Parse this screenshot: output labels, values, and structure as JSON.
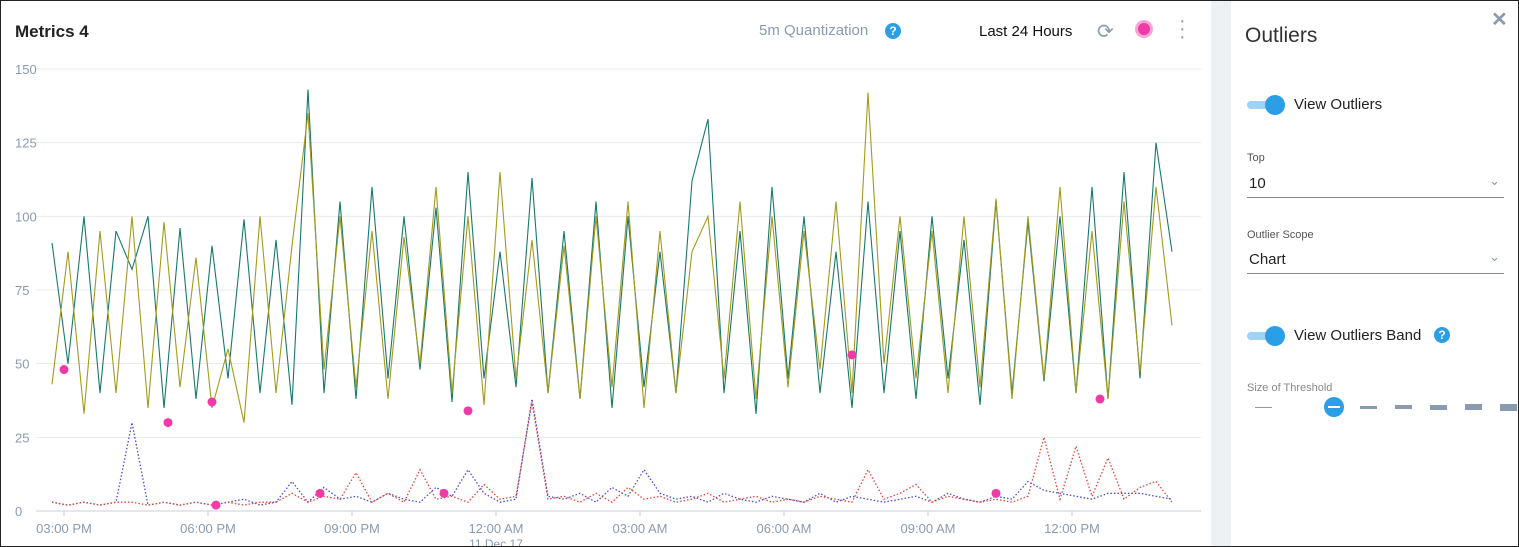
{
  "header": {
    "title": "Metrics 4",
    "quantization": "5m Quantization",
    "help_glyph": "?",
    "time_range": "Last 24 Hours",
    "icons": [
      "refresh-icon",
      "outlier-indicator-icon",
      "more-vertical-icon"
    ]
  },
  "panel": {
    "title": "Outliers",
    "close_glyph": "✕",
    "view_outliers": "View Outliers",
    "view_outliers_on": true,
    "top_label": "Top",
    "top_value": "10",
    "scope_label": "Outlier Scope",
    "scope_value": "Chart",
    "view_band": "View Outliers Band",
    "view_band_on": true,
    "threshold_label": "Size of Threshold",
    "threshold_selected": 2,
    "threshold_sizes": 7
  },
  "chart_data": {
    "type": "line",
    "ylim": [
      0,
      150
    ],
    "yticks": [
      "0",
      "25",
      "50",
      "75",
      "100",
      "125",
      "150"
    ],
    "xticks": [
      "03:00 PM",
      "06:00 PM",
      "09:00 PM",
      "12:00 AM",
      "03:00 AM",
      "06:00 AM",
      "09:00 AM",
      "12:00 PM"
    ],
    "xtick_sublabel": "11 Dec 17",
    "x_start": "02:45 PM",
    "interval_minutes": 20,
    "grid": true,
    "series": [
      {
        "color": "#167a6a",
        "style": "solid",
        "values": [
          91,
          50,
          100,
          40,
          95,
          82,
          100,
          35,
          96,
          38,
          90,
          45,
          99,
          40,
          92,
          36,
          143,
          40,
          105,
          38,
          110,
          45,
          100,
          48,
          103,
          37,
          115,
          45,
          88,
          42,
          113,
          40,
          95,
          38,
          105,
          35,
          100,
          42,
          88,
          40,
          112,
          133,
          40,
          95,
          33,
          110,
          45,
          100,
          40,
          88,
          35,
          105,
          40,
          95,
          38,
          100,
          45,
          92,
          36,
          105,
          40,
          98,
          44,
          100,
          40,
          110,
          38,
          115,
          45,
          125,
          88
        ]
      },
      {
        "color": "#a49a1c",
        "style": "solid",
        "values": [
          43,
          88,
          33,
          95,
          40,
          100,
          35,
          98,
          42,
          86,
          35,
          55,
          30,
          100,
          40,
          90,
          135,
          48,
          100,
          42,
          95,
          38,
          93,
          50,
          110,
          40,
          100,
          36,
          115,
          45,
          92,
          40,
          90,
          38,
          100,
          42,
          105,
          35,
          95,
          40,
          88,
          100,
          45,
          105,
          38,
          100,
          42,
          95,
          48,
          105,
          40,
          142,
          50,
          100,
          45,
          95,
          40,
          100,
          42,
          106,
          38,
          100,
          45,
          110,
          40,
          95,
          38,
          105,
          47,
          110,
          63
        ]
      },
      {
        "color": "#4a4ad6",
        "style": "dotted",
        "values": [
          3,
          2,
          3,
          2,
          3,
          30,
          2,
          3,
          2,
          3,
          2,
          3,
          4,
          2,
          3,
          10,
          3,
          8,
          4,
          5,
          3,
          6,
          4,
          3,
          8,
          5,
          14,
          6,
          3,
          4,
          38,
          5,
          4,
          6,
          3,
          8,
          5,
          14,
          6,
          4,
          5,
          3,
          6,
          4,
          3,
          5,
          4,
          3,
          6,
          3,
          5,
          4,
          3,
          4,
          5,
          3,
          6,
          4,
          3,
          5,
          4,
          10,
          7,
          6,
          5,
          4,
          6,
          6,
          6,
          5,
          4
        ]
      },
      {
        "color": "#e2443a",
        "style": "dotted",
        "values": [
          3,
          2,
          3,
          2,
          3,
          3,
          2,
          3,
          2,
          3,
          2,
          3,
          2,
          3,
          3,
          6,
          3,
          5,
          4,
          13,
          3,
          6,
          3,
          14,
          4,
          5,
          3,
          9,
          4,
          5,
          37,
          4,
          5,
          3,
          6,
          3,
          8,
          4,
          5,
          3,
          4,
          6,
          3,
          4,
          5,
          3,
          4,
          3,
          5,
          4,
          3,
          14,
          4,
          6,
          9,
          3,
          5,
          4,
          3,
          4,
          3,
          5,
          25,
          4,
          22,
          5,
          18,
          4,
          8,
          10,
          3
        ]
      }
    ],
    "outliers": [
      {
        "time": "03:00 PM",
        "value": 48
      },
      {
        "time": "05:10 PM",
        "value": 30
      },
      {
        "time": "06:05 PM",
        "value": 37
      },
      {
        "time": "06:10 PM",
        "value": 2
      },
      {
        "time": "08:20 PM",
        "value": 6
      },
      {
        "time": "10:55 PM",
        "value": 6
      },
      {
        "time": "11:25 PM",
        "value": 34
      },
      {
        "time": "07:25 AM",
        "value": 53
      },
      {
        "time": "10:25 AM",
        "value": 6
      },
      {
        "time": "12:35 PM",
        "value": 38
      }
    ],
    "outlier_color": "#f03aa8"
  }
}
